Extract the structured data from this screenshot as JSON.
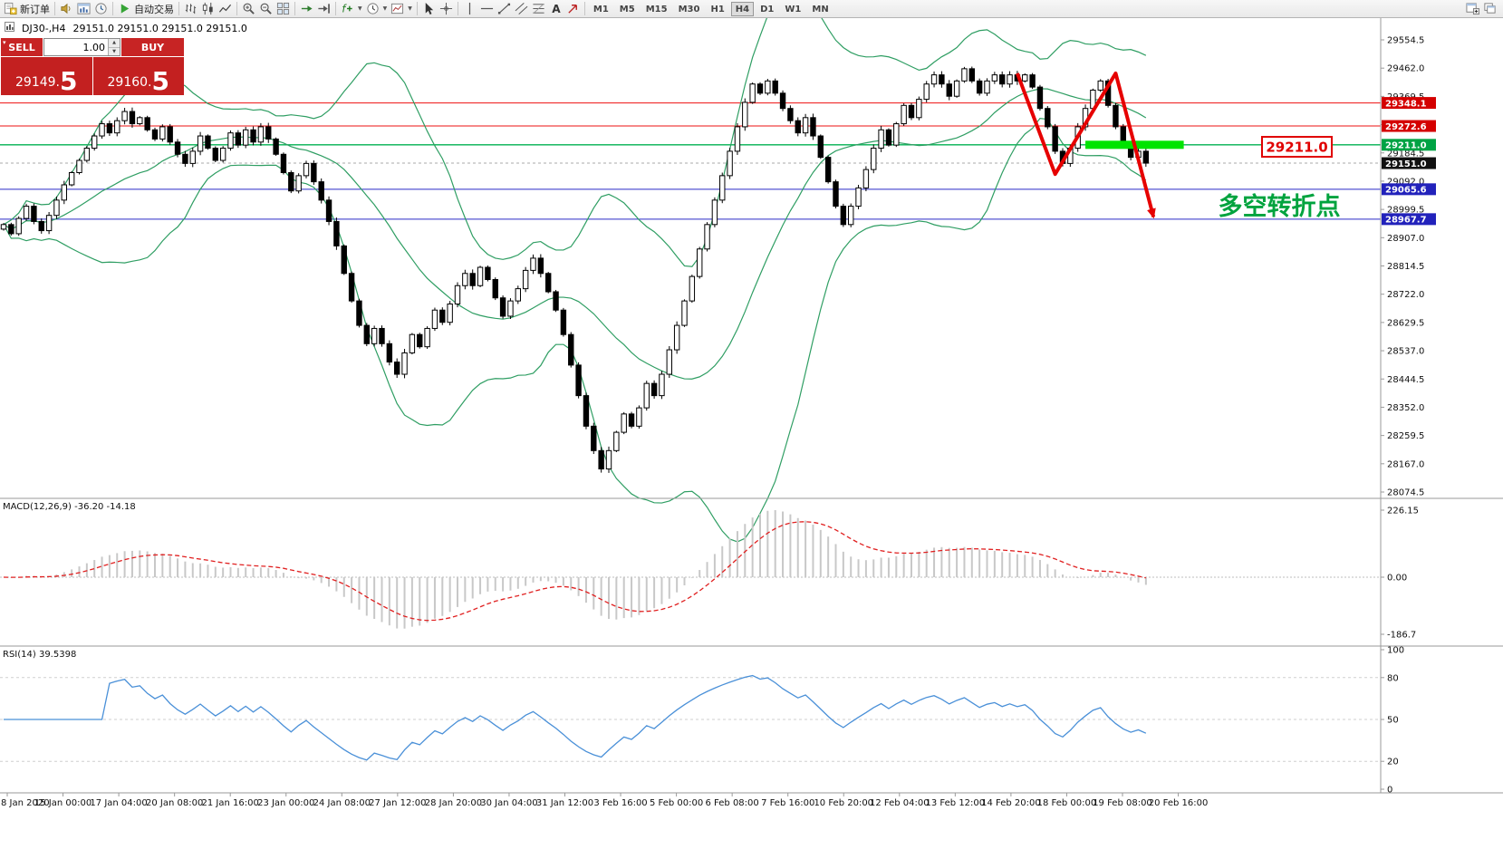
{
  "toolbar": {
    "groups": [
      {
        "items": [
          {
            "name": "new-order-button",
            "icon": "new-order-icon",
            "label": "新订单"
          }
        ]
      },
      {
        "items": [
          {
            "name": "sound-alert-button",
            "icon": "sound-icon"
          },
          {
            "name": "open-chart-button",
            "icon": "chart-window-icon"
          },
          {
            "name": "history-center-button",
            "icon": "history-icon"
          }
        ]
      },
      {
        "items": [
          {
            "name": "auto-trading-button",
            "icon": "play-icon",
            "label": "自动交易"
          }
        ]
      },
      {
        "items": [
          {
            "name": "bar-chart-button",
            "icon": "bars-icon"
          },
          {
            "name": "candlestick-chart-button",
            "icon": "candles-icon"
          },
          {
            "name": "line-chart-button",
            "icon": "line-chart-icon"
          }
        ]
      },
      {
        "items": [
          {
            "name": "zoom-in-button",
            "icon": "zoom-in-icon"
          },
          {
            "name": "zoom-out-button",
            "icon": "zoom-out-icon"
          },
          {
            "name": "tile-windows-button",
            "icon": "tile-windows-icon"
          }
        ]
      },
      {
        "items": [
          {
            "name": "auto-scroll-button",
            "icon": "auto-scroll-icon"
          },
          {
            "name": "chart-shift-button",
            "icon": "chart-shift-icon"
          }
        ]
      },
      {
        "items": [
          {
            "name": "indicators-button",
            "icon": "indicators-icon",
            "caret": true
          },
          {
            "name": "periods-button",
            "icon": "periods-icon",
            "caret": true
          },
          {
            "name": "templates-button",
            "icon": "templates-icon",
            "caret": true
          }
        ]
      },
      {
        "items": [
          {
            "name": "cursor-button",
            "icon": "cursor-icon"
          },
          {
            "name": "crosshair-button",
            "icon": "crosshair-icon"
          }
        ]
      },
      {
        "items": [
          {
            "name": "vertical-line-button",
            "icon": "vline-icon"
          },
          {
            "name": "horizontal-line-button",
            "icon": "hline-icon"
          },
          {
            "name": "trendline-button",
            "icon": "trendline-icon"
          },
          {
            "name": "channel-button",
            "icon": "channel-icon"
          },
          {
            "name": "fibonacci-button",
            "icon": "fibonacci-icon"
          },
          {
            "name": "text-label-button",
            "icon": "text-icon"
          },
          {
            "name": "arrows-button",
            "icon": "arrows-icon"
          }
        ]
      }
    ],
    "timeframes": [
      "M1",
      "M5",
      "M15",
      "M30",
      "H1",
      "H4",
      "D1",
      "W1",
      "MN"
    ],
    "active_timeframe": "H4",
    "right_items": [
      {
        "name": "new-chart-window-button",
        "icon": "new-chart-icon"
      },
      {
        "name": "window-list-button",
        "icon": "windows-icon"
      }
    ]
  },
  "chart_header": {
    "symbol_period": "DJ30-,H4",
    "ohlc": "29151.0 29151.0 29151.0 29151.0"
  },
  "one_click": {
    "sell_label": "SELL",
    "buy_label": "BUY",
    "volume": "1.00",
    "sell_price": "29149.",
    "sell_price_big": "5",
    "buy_price": "29160.",
    "buy_price_big": "5"
  },
  "indicators": {
    "macd_label": "MACD(12,26,9) -36.20 -14.18",
    "rsi_label": "RSI(14) 39.5398"
  },
  "annotations": {
    "price_box_label": "29211.0",
    "turning_point_text": "多空转折点"
  },
  "axes": {
    "price_labels": [
      "29554.5",
      "29462.0",
      "29369.5",
      "29277.0",
      "29184.5",
      "29092.0",
      "28999.5",
      "28907.0",
      "28814.5",
      "28722.0",
      "28629.5",
      "28537.0",
      "28444.5",
      "28352.0",
      "28259.5",
      "28167.0",
      "28074.5"
    ],
    "macd_axis": [
      "226.15",
      "0.00",
      "-186.7"
    ],
    "rsi_axis": [
      "100",
      "80",
      "50",
      "20",
      "0"
    ],
    "time_labels": [
      "8 Jan 2020",
      "15 Jan 00:00",
      "17 Jan 04:00",
      "20 Jan 08:00",
      "21 Jan 16:00",
      "23 Jan 00:00",
      "24 Jan 08:00",
      "27 Jan 12:00",
      "28 Jan 20:00",
      "30 Jan 04:00",
      "31 Jan 12:00",
      "3 Feb 16:00",
      "5 Feb 00:00",
      "6 Feb 08:00",
      "7 Feb 16:00",
      "10 Feb 20:00",
      "12 Feb 04:00",
      "13 Feb 12:00",
      "14 Feb 20:00",
      "18 Feb 00:00",
      "19 Feb 08:00",
      "20 Feb 16:00"
    ]
  },
  "chart_data": {
    "type": "candlestick+indicators",
    "symbol": "DJ30-",
    "period": "H4",
    "axis_max": 29554.5,
    "axis_min": 28074.5,
    "closes": [
      28950,
      28920,
      28970,
      29010,
      28960,
      28930,
      28980,
      29030,
      29080,
      29120,
      29160,
      29200,
      29240,
      29280,
      29250,
      29290,
      29320,
      29280,
      29300,
      29260,
      29230,
      29270,
      29220,
      29180,
      29150,
      29190,
      29240,
      29200,
      29160,
      29200,
      29250,
      29210,
      29260,
      29220,
      29270,
      29230,
      29180,
      29120,
      29060,
      29110,
      29150,
      29090,
      29030,
      28960,
      28880,
      28790,
      28700,
      28620,
      28560,
      28610,
      28560,
      28500,
      28460,
      28530,
      28590,
      28550,
      28610,
      28670,
      28630,
      28690,
      28750,
      28790,
      28750,
      28810,
      28770,
      28710,
      28650,
      28700,
      28740,
      28800,
      28840,
      28790,
      28730,
      28670,
      28590,
      28490,
      28390,
      28290,
      28210,
      28150,
      28210,
      28270,
      28330,
      28290,
      28350,
      28430,
      28390,
      28460,
      28540,
      28620,
      28700,
      28780,
      28870,
      28950,
      29030,
      29110,
      29190,
      29270,
      29350,
      29410,
      29380,
      29420,
      29380,
      29330,
      29290,
      29250,
      29300,
      29240,
      29170,
      29090,
      29010,
      28950,
      29010,
      29070,
      29130,
      29200,
      29260,
      29210,
      29280,
      29340,
      29300,
      29360,
      29410,
      29440,
      29410,
      29370,
      29420,
      29460,
      29420,
      29380,
      29420,
      29440,
      29410,
      29440,
      29420,
      29440,
      29400,
      29330,
      29270,
      29190,
      29150,
      29200,
      29270,
      29330,
      29390,
      29420,
      29340,
      29270,
      29210,
      29170,
      29190,
      29151
    ],
    "levels": [
      {
        "price": 29348.1,
        "color": "#ee1111",
        "tag": "29348.1",
        "tag_bg": "#d40000"
      },
      {
        "price": 29272.6,
        "color": "#ee1111",
        "tag": "29272.6",
        "tag_bg": "#d40000"
      },
      {
        "price": 29211.0,
        "color": "#00b050",
        "tag": "29211.0",
        "tag_bg": "#00a344",
        "width": 1.4
      },
      {
        "price": 29151.0,
        "color": "#aaaaaa",
        "tag": "29151.0",
        "tag_bg": "#111111",
        "dashed": true
      },
      {
        "price": 29065.6,
        "color": "#2a2ac8",
        "tag": "29065.6",
        "tag_bg": "#2222bb"
      },
      {
        "price": 28967.7,
        "color": "#2a2ac8",
        "tag": "28967.7",
        "tag_bg": "#2222bb"
      }
    ],
    "bollinger": {
      "period": 20,
      "deviation": 2,
      "color": "#2f9e63"
    },
    "macd": {
      "fast": 12,
      "slow": 26,
      "signal": 9,
      "hist_color": "#c8c8c8",
      "signal_color": "#e02020"
    },
    "rsi": {
      "period": 14,
      "color": "#4a90d8"
    },
    "arrow_points": [
      [
        134,
        29445
      ],
      [
        139,
        29115
      ],
      [
        147,
        29445
      ],
      [
        152,
        28975
      ]
    ],
    "arrow_color": "#e60000",
    "highlight_bar": {
      "from_i": 143,
      "to_i": 156,
      "price": 29211,
      "color": "#00e400"
    }
  }
}
